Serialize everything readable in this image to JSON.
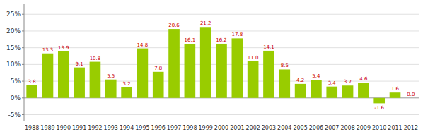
{
  "chart_data": {
    "type": "bar",
    "categories": [
      "1988",
      "1989",
      "1990",
      "1991",
      "1992",
      "1993",
      "1994",
      "1995",
      "1996",
      "1997",
      "1998",
      "1999",
      "2000",
      "2001",
      "2002",
      "2003",
      "2004",
      "2005",
      "2006",
      "2007",
      "2008",
      "2009",
      "2010",
      "2011",
      "2012"
    ],
    "values": [
      3.8,
      13.3,
      13.9,
      9.1,
      10.8,
      5.5,
      3.2,
      14.8,
      7.8,
      20.6,
      16.1,
      21.2,
      16.2,
      17.8,
      11.0,
      14.1,
      8.5,
      4.2,
      5.4,
      3.4,
      3.7,
      4.6,
      -1.6,
      1.6,
      0.0
    ],
    "value_labels": [
      "3.8",
      "13.3",
      "13.9",
      "9.1",
      "10.8",
      "5.5",
      "3.2",
      "14.8",
      "7.8",
      "20.6",
      "16.1",
      "21.2",
      "16.2",
      "17.8",
      "11.0",
      "14.1",
      "8.5",
      "4.2",
      "5.4",
      "3.4",
      "3.7",
      "4.6",
      "-1.6",
      "1.6",
      "0.0"
    ],
    "color": "#99cc00",
    "ylim": [
      -7,
      28
    ],
    "yticks": [
      {
        "value": -5,
        "label": "-5%"
      },
      {
        "value": 0,
        "label": "0%"
      },
      {
        "value": 5,
        "label": "5%"
      },
      {
        "value": 10,
        "label": "10%"
      },
      {
        "value": 15,
        "label": "15%"
      },
      {
        "value": 20,
        "label": "20%"
      },
      {
        "value": 25,
        "label": "25%"
      }
    ],
    "grid": true,
    "data_labels": true
  }
}
